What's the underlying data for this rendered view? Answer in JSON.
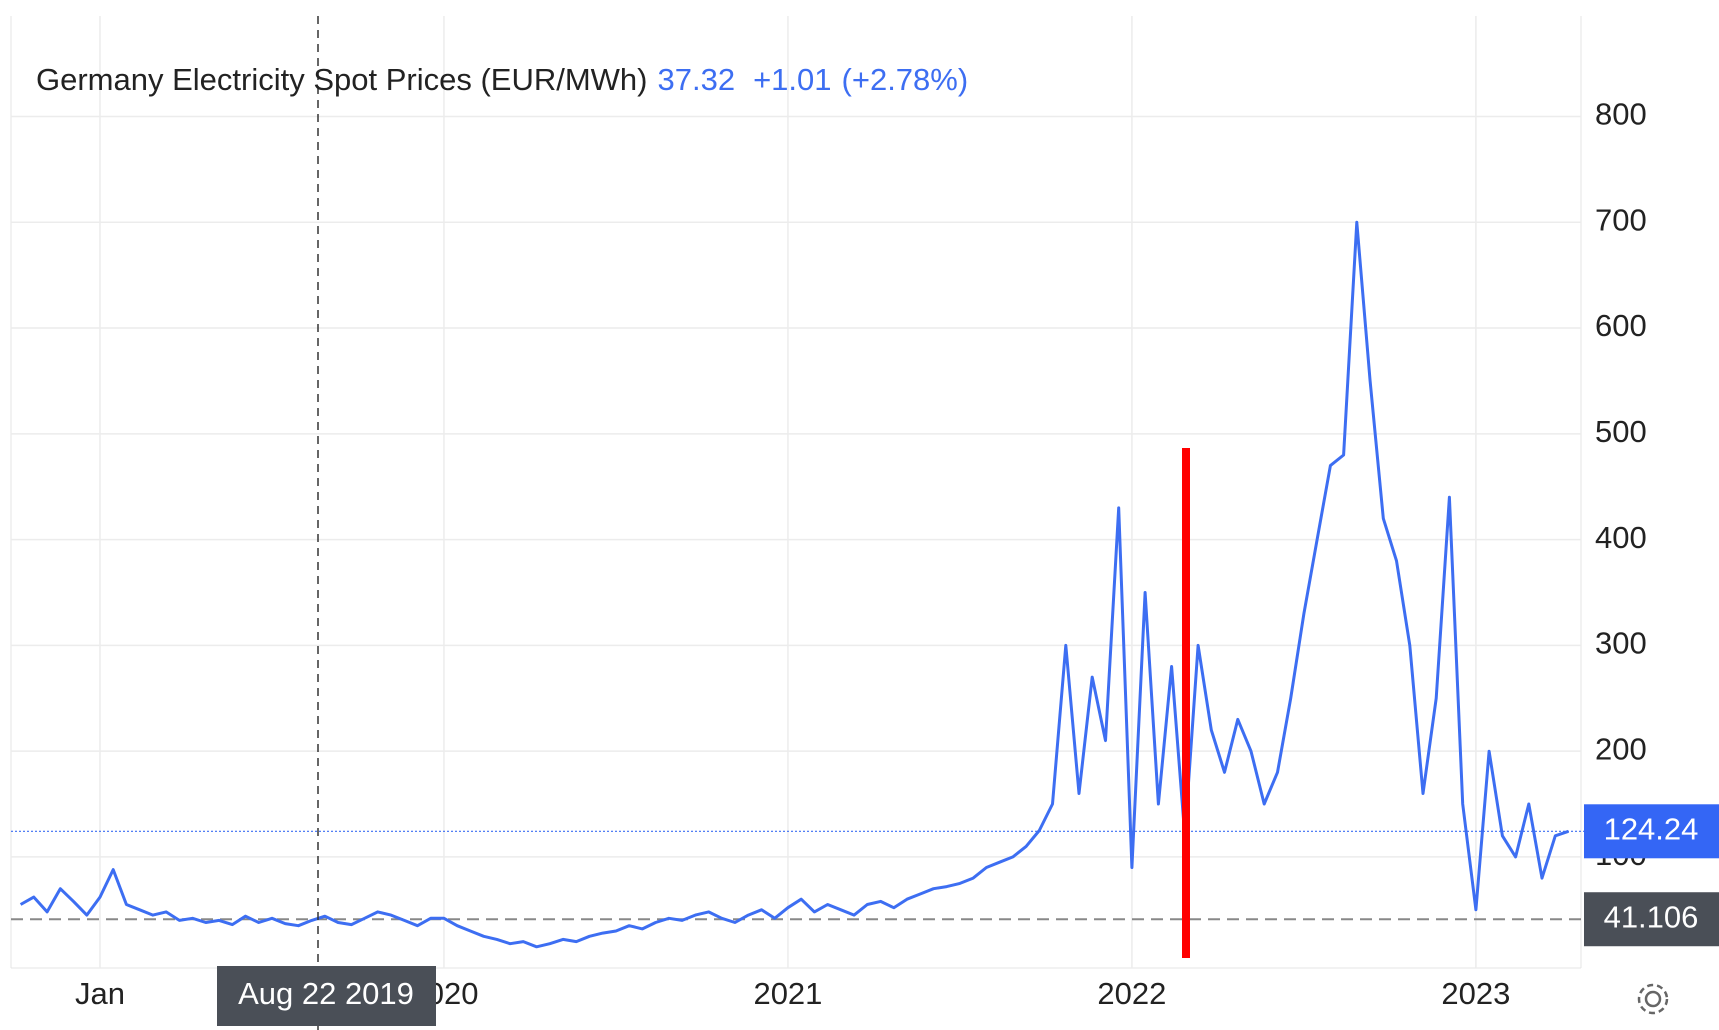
{
  "chart_data": {
    "type": "line",
    "title": "Germany Electricity Spot Prices (EUR/MWh)",
    "headline_value": "37.32",
    "headline_change": "+1.01",
    "headline_change_pct": "(+2.78%)",
    "crosshair_label": "Aug 22 2019",
    "categories": [
      null,
      null,
      null,
      null,
      null,
      null,
      "Jan",
      null,
      null,
      null,
      null,
      null,
      null,
      null,
      null,
      null,
      null,
      null,
      null,
      null,
      null,
      null,
      null,
      null,
      null,
      null,
      null,
      null,
      null,
      null,
      null,
      null,
      "2020",
      null,
      null,
      null,
      null,
      null,
      null,
      null,
      null,
      null,
      null,
      null,
      null,
      null,
      null,
      null,
      null,
      null,
      null,
      null,
      null,
      null,
      null,
      null,
      null,
      null,
      "2021",
      null,
      null,
      null,
      null,
      null,
      null,
      null,
      null,
      null,
      null,
      null,
      null,
      null,
      null,
      null,
      null,
      null,
      null,
      null,
      null,
      null,
      null,
      null,
      null,
      null,
      "2022",
      null,
      null,
      null,
      null,
      null,
      null,
      null,
      null,
      null,
      null,
      null,
      null,
      null,
      null,
      null,
      null,
      null,
      null,
      null,
      null,
      null,
      null,
      null,
      null,
      null,
      "2023",
      null,
      null,
      null,
      null,
      null,
      null,
      null
    ],
    "series": [
      {
        "name": "Germany Electricity Spot Prices",
        "color": "#3d6ef2",
        "values": [
          55,
          62,
          48,
          70,
          58,
          45,
          62,
          88,
          55,
          50,
          45,
          48,
          40,
          42,
          38,
          40,
          36,
          44,
          38,
          42,
          37,
          35,
          40,
          44,
          38,
          36,
          42,
          48,
          45,
          40,
          35,
          42,
          42,
          35,
          30,
          25,
          22,
          18,
          20,
          15,
          18,
          22,
          20,
          25,
          28,
          30,
          35,
          32,
          38,
          42,
          40,
          45,
          48,
          42,
          38,
          45,
          50,
          42,
          52,
          60,
          48,
          55,
          50,
          45,
          55,
          58,
          52,
          60,
          65,
          70,
          72,
          75,
          80,
          90,
          95,
          100,
          110,
          125,
          150,
          300,
          160,
          270,
          210,
          430,
          90,
          350,
          150,
          280,
          120,
          300,
          220,
          180,
          230,
          200,
          150,
          180,
          250,
          330,
          400,
          470,
          480,
          700,
          550,
          420,
          380,
          300,
          160,
          250,
          440,
          150,
          50,
          200,
          120,
          100,
          150,
          80,
          120,
          124.24
        ]
      }
    ],
    "last_value": 124.24,
    "last_value_label": "124.24",
    "reference_line": 41.106,
    "reference_line_label": "41.106",
    "ylim": [
      -5,
      895
    ],
    "yticks": [
      100,
      200,
      300,
      400,
      500,
      600,
      700,
      800
    ],
    "grid": true
  }
}
